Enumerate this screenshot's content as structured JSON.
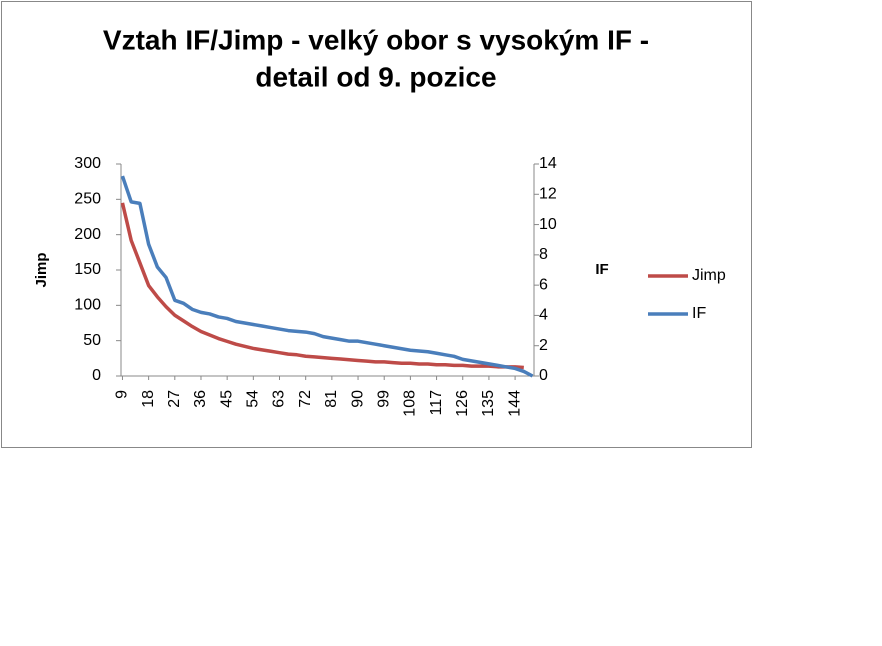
{
  "chart_data": {
    "type": "line",
    "title": "Vztah IF/Jimp - velký obor s vysokým IF -",
    "subtitle": "detail od 9. pozice",
    "ylabel": "Jimp",
    "y2label": "IF",
    "x": [
      9,
      12,
      15,
      18,
      21,
      24,
      27,
      30,
      33,
      36,
      39,
      42,
      45,
      48,
      51,
      54,
      57,
      60,
      63,
      66,
      69,
      72,
      75,
      78,
      81,
      84,
      87,
      90,
      93,
      96,
      99,
      102,
      105,
      108,
      111,
      114,
      117,
      120,
      123,
      126,
      129,
      132,
      135,
      138,
      141,
      144,
      147,
      150
    ],
    "xlim": [
      8.5,
      150.5
    ],
    "xticks": [
      9,
      18,
      27,
      36,
      45,
      54,
      63,
      72,
      81,
      90,
      99,
      108,
      117,
      126,
      135,
      144
    ],
    "ylim": [
      0,
      300
    ],
    "yticks": [
      0,
      50,
      100,
      150,
      200,
      250,
      300
    ],
    "y2lim": [
      0,
      14
    ],
    "y2ticks": [
      0,
      2,
      4,
      6,
      8,
      10,
      12,
      14
    ],
    "legend": "right",
    "series": [
      {
        "name": "Jimp",
        "color": "#be4b48",
        "values": [
          245,
          192,
          160,
          128,
          112,
          98,
          86,
          78,
          70,
          63,
          58,
          53,
          49,
          45,
          42,
          39,
          37,
          35,
          33,
          31,
          30,
          28,
          27,
          26,
          25,
          24,
          23,
          22,
          21,
          20,
          20,
          19,
          18,
          18,
          17,
          17,
          16,
          16,
          15,
          15,
          14,
          14,
          14,
          13,
          13,
          13,
          12,
          null
        ]
      },
      {
        "name": "IF",
        "color": "#4a7ebb",
        "axis": "y2",
        "values": [
          13.2,
          11.5,
          11.4,
          8.7,
          7.2,
          6.5,
          5.0,
          4.8,
          4.4,
          4.2,
          4.1,
          3.9,
          3.8,
          3.6,
          3.5,
          3.4,
          3.3,
          3.2,
          3.1,
          3.0,
          2.95,
          2.9,
          2.8,
          2.6,
          2.5,
          2.4,
          2.3,
          2.3,
          2.2,
          2.1,
          2.0,
          1.9,
          1.8,
          1.7,
          1.65,
          1.6,
          1.5,
          1.4,
          1.3,
          1.1,
          1.0,
          0.9,
          0.8,
          0.7,
          0.6,
          0.5,
          0.3,
          0.0
        ]
      }
    ]
  }
}
